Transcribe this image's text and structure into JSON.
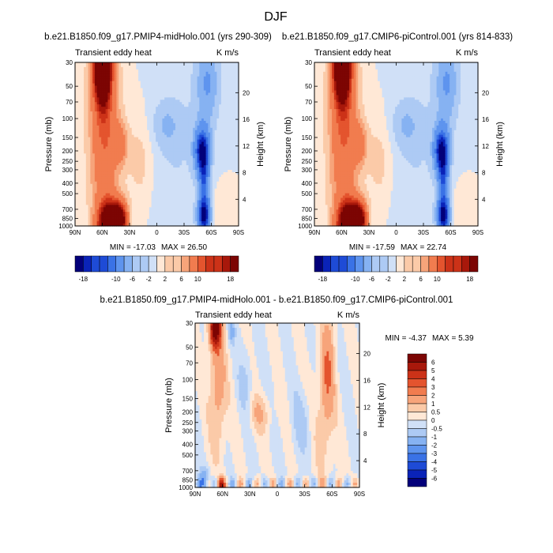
{
  "page": {
    "title": "DJF"
  },
  "palettes": {
    "model": [
      "#03007a",
      "#0a23b8",
      "#1e4bd6",
      "#3a72e6",
      "#5e94ee",
      "#86b2f2",
      "#adcaf4",
      "#d0e0f7",
      "#ffe8d6",
      "#fbcaa8",
      "#f7a47a",
      "#f17c4f",
      "#e4542e",
      "#cc3218",
      "#a8180b",
      "#7c0503"
    ],
    "diff": [
      "#03007a",
      "#0a23b8",
      "#1e4bd6",
      "#3a72e6",
      "#5e94ee",
      "#86b2f2",
      "#adcaf4",
      "#d0e0f7",
      "#ffe8d6",
      "#fbcaa8",
      "#f7a47a",
      "#f17c4f",
      "#e4542e",
      "#cc3218",
      "#a8180b",
      "#7c0503"
    ]
  },
  "chart_data": [
    {
      "type": "heatmap",
      "case_title": "b.e21.B1850.f09_g17.PMIP4-midHolo.001 (yrs 290-309)",
      "left_label": "Transient eddy heat",
      "right_label": "K m/s",
      "xlabel": "",
      "ylabel": "Pressure (mb)",
      "y2label": "Height (km)",
      "x_ticks": [
        "90N",
        "60N",
        "30N",
        "0",
        "30S",
        "60S",
        "90S"
      ],
      "xlim": [
        90,
        -90
      ],
      "y_ticks": [
        30,
        50,
        70,
        100,
        150,
        200,
        250,
        300,
        400,
        500,
        700,
        850,
        1000
      ],
      "ylim": [
        1000,
        30
      ],
      "y_scale": "log",
      "height_ticks": [
        4,
        8,
        12,
        16,
        20
      ],
      "min_label": "MIN = -17.03",
      "max_label": "MAX =  26.50",
      "min": -17.03,
      "max": 26.5,
      "colorbar": {
        "orientation": "horizontal",
        "levels": [
          -18,
          -16,
          -14,
          -12,
          -10,
          -8,
          -6,
          -4,
          -2,
          0,
          2,
          4,
          6,
          8,
          10,
          12,
          14,
          16,
          18
        ],
        "tick_labels": [
          "-18",
          "-10",
          "-6",
          "-2",
          "2",
          "6",
          "10",
          "18"
        ]
      }
    },
    {
      "type": "heatmap",
      "case_title": "b.e21.B1850.f09_g17.CMIP6-piControl.001 (yrs 814-833)",
      "left_label": "Transient eddy heat",
      "right_label": "K m/s",
      "xlabel": "",
      "ylabel": "Pressure (mb)",
      "y2label": "Height (km)",
      "x_ticks": [
        "90N",
        "60N",
        "30N",
        "0",
        "30S",
        "60S",
        "90S"
      ],
      "xlim": [
        90,
        -90
      ],
      "y_ticks": [
        30,
        50,
        70,
        100,
        150,
        200,
        250,
        300,
        400,
        500,
        700,
        850,
        1000
      ],
      "ylim": [
        1000,
        30
      ],
      "y_scale": "log",
      "height_ticks": [
        4,
        8,
        12,
        16,
        20
      ],
      "min_label": "MIN = -17.59",
      "max_label": "MAX =  22.74",
      "min": -17.59,
      "max": 22.74,
      "colorbar": {
        "orientation": "horizontal",
        "levels": [
          -18,
          -16,
          -14,
          -12,
          -10,
          -8,
          -6,
          -4,
          -2,
          0,
          2,
          4,
          6,
          8,
          10,
          12,
          14,
          16,
          18
        ],
        "tick_labels": [
          "-18",
          "-10",
          "-6",
          "-2",
          "2",
          "6",
          "10",
          "18"
        ]
      }
    },
    {
      "type": "heatmap",
      "case_title": "b.e21.B1850.f09_g17.PMIP4-midHolo.001 - b.e21.B1850.f09_g17.CMIP6-piControl.001",
      "left_label": "Transient eddy heat",
      "right_label": "K m/s",
      "xlabel": "",
      "ylabel": "Pressure (mb)",
      "y2label": "Height (km)",
      "x_ticks": [
        "90N",
        "60N",
        "30N",
        "0",
        "30S",
        "60S",
        "90S"
      ],
      "xlim": [
        90,
        -90
      ],
      "y_ticks": [
        30,
        50,
        70,
        100,
        150,
        200,
        250,
        300,
        400,
        500,
        700,
        850,
        1000
      ],
      "ylim": [
        1000,
        30
      ],
      "y_scale": "log",
      "height_ticks": [
        4,
        8,
        12,
        16,
        20
      ],
      "min_label": "MIN = -4.37",
      "max_label": "MAX =   5.39",
      "min": -4.37,
      "max": 5.39,
      "colorbar": {
        "orientation": "vertical",
        "levels": [
          -6,
          -5,
          -4,
          -3,
          -2,
          -1,
          -0.5,
          0,
          0.5,
          1,
          2,
          3,
          4,
          5,
          6
        ],
        "tick_labels": [
          "6",
          "5",
          "4",
          "3",
          "2",
          "1",
          "0.5",
          "0",
          "-0.5",
          "-1",
          "-2",
          "-3",
          "-4",
          "-5",
          "-6"
        ]
      }
    }
  ]
}
